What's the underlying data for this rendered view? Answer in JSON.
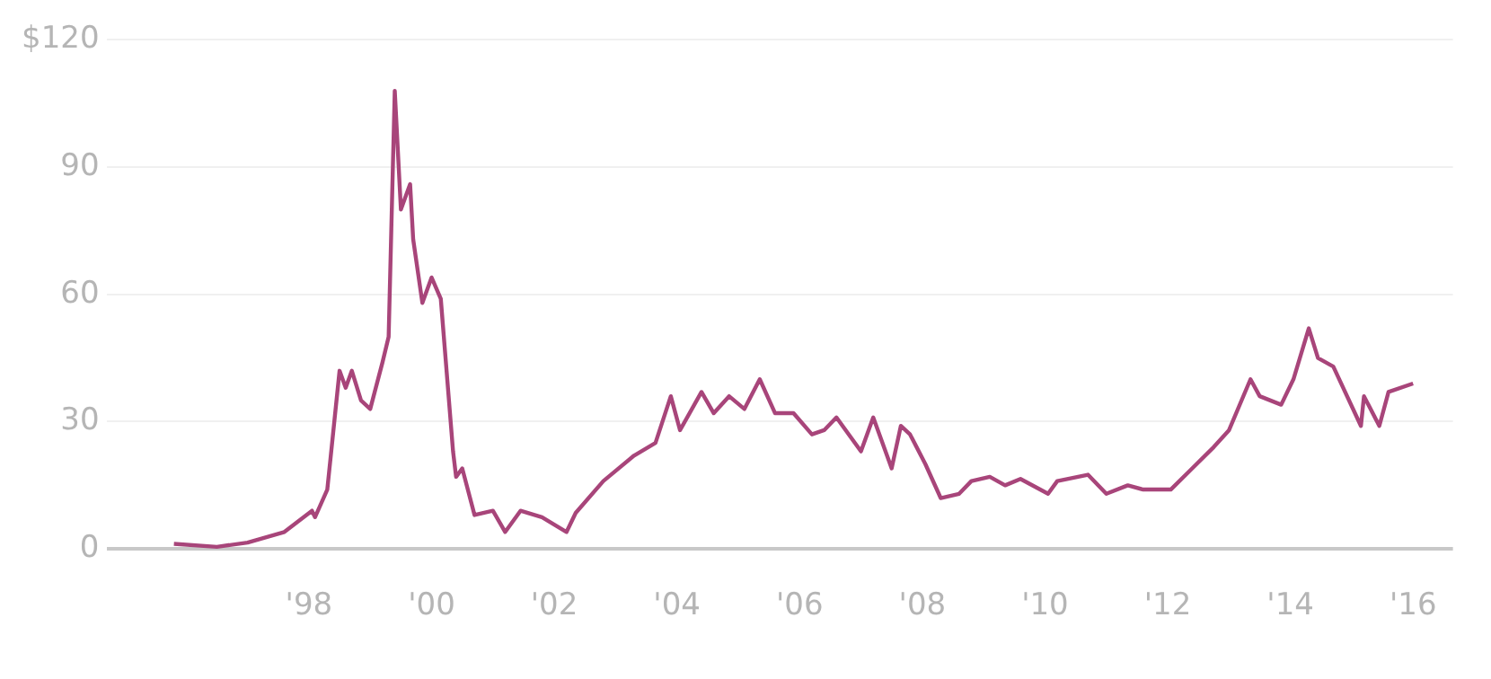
{
  "chart_data": {
    "type": "line",
    "x": [
      1995.8,
      1996.5,
      1997.0,
      1997.6,
      1998.05,
      1998.1,
      1998.3,
      1998.5,
      1998.6,
      1998.7,
      1998.85,
      1999.0,
      1999.2,
      1999.3,
      1999.4,
      1999.5,
      1999.65,
      1999.7,
      1999.85,
      2000.0,
      2000.15,
      2000.35,
      2000.4,
      2000.5,
      2000.7,
      2001.0,
      2001.2,
      2001.45,
      2001.8,
      2002.2,
      2002.35,
      2002.8,
      2003.3,
      2003.65,
      2003.9,
      2004.05,
      2004.4,
      2004.6,
      2004.85,
      2005.1,
      2005.35,
      2005.6,
      2005.9,
      2006.2,
      2006.4,
      2006.6,
      2007.0,
      2007.2,
      2007.5,
      2007.65,
      2007.8,
      2008.05,
      2008.3,
      2008.6,
      2008.8,
      2009.1,
      2009.35,
      2009.6,
      2010.05,
      2010.2,
      2010.7,
      2011.0,
      2011.35,
      2011.6,
      2012.05,
      2012.4,
      2012.75,
      2013.0,
      2013.35,
      2013.5,
      2013.85,
      2014.05,
      2014.3,
      2014.45,
      2014.7,
      2015.15,
      2015.2,
      2015.45,
      2015.6,
      2016.0
    ],
    "series": [
      {
        "color": "#a8457a",
        "values": [
          1.2,
          0.5,
          1.5,
          4,
          9,
          7.5,
          14,
          42,
          38,
          42,
          35,
          33,
          44,
          50,
          108,
          80,
          86,
          73,
          58,
          64,
          59,
          23,
          17,
          19,
          8,
          9,
          4,
          9,
          7.5,
          4,
          8.5,
          16,
          22,
          25,
          36,
          28,
          37,
          32,
          36,
          33,
          40,
          32,
          32,
          27,
          28,
          31,
          23,
          31,
          19,
          29,
          27,
          20,
          12,
          13,
          16,
          17,
          15,
          16.5,
          13,
          16,
          17.5,
          13,
          15,
          14,
          14,
          19,
          24,
          28,
          40,
          36,
          34,
          40,
          52,
          45,
          43,
          29,
          36,
          29,
          37,
          39
        ]
      }
    ],
    "xlim": [
      1994.7,
      2016.65
    ],
    "xticks": [
      {
        "value": 1998,
        "label": "'98"
      },
      {
        "value": 2000,
        "label": "'00"
      },
      {
        "value": 2002,
        "label": "'02"
      },
      {
        "value": 2004,
        "label": "'04"
      },
      {
        "value": 2006,
        "label": "'06"
      },
      {
        "value": 2008,
        "label": "'08"
      },
      {
        "value": 2010,
        "label": "'10"
      },
      {
        "value": 2012,
        "label": "'12"
      },
      {
        "value": 2014,
        "label": "'14"
      },
      {
        "value": 2016,
        "label": "'16"
      }
    ],
    "ylim": [
      0,
      120
    ],
    "yticks": [
      0,
      30,
      60,
      90,
      {
        "value": 120,
        "label": "$120"
      }
    ],
    "grid": "y",
    "legend": false,
    "marker": "none",
    "line_style": "solid"
  }
}
